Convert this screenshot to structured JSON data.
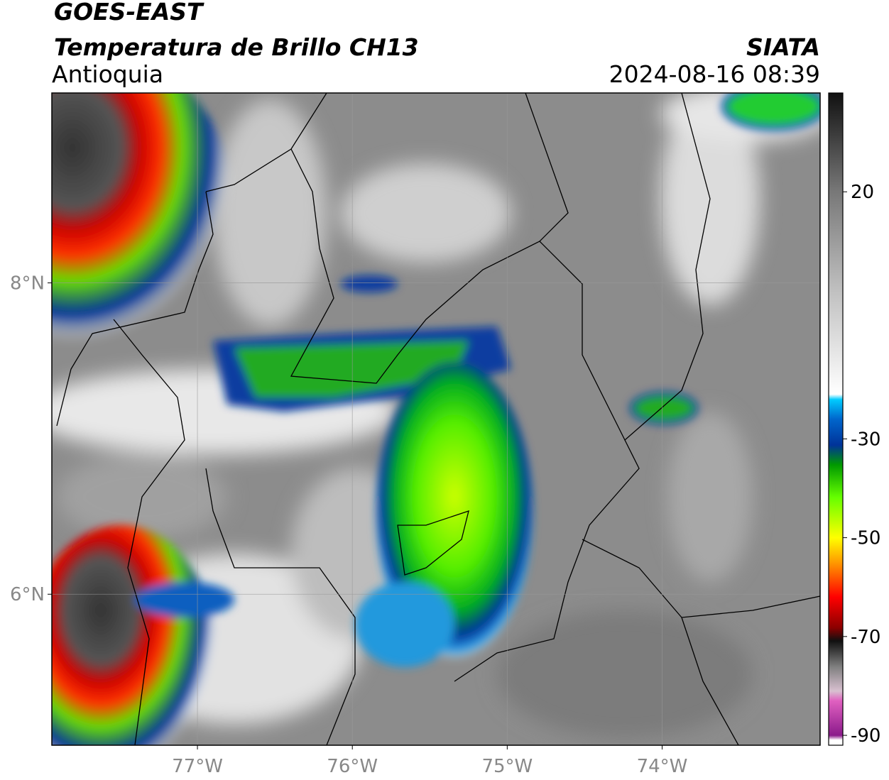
{
  "header": {
    "title": "GOES-EAST",
    "subtitle": "Temperatura de Brillo CH13",
    "region": "Antioquia",
    "source": "SIATA",
    "datetime": "2024-08-16 08:39"
  },
  "map": {
    "xlim": [
      -77.94,
      -72.98
    ],
    "ylim": [
      5.03,
      9.22
    ],
    "xticks": [
      {
        "value": -77,
        "label": "77°W"
      },
      {
        "value": -76,
        "label": "76°W"
      },
      {
        "value": -75,
        "label": "75°W"
      },
      {
        "value": -74,
        "label": "74°W"
      }
    ],
    "yticks": [
      {
        "value": 8,
        "label": "8°N"
      },
      {
        "value": 6,
        "label": "6°N"
      }
    ],
    "grid": true
  },
  "colorbar": {
    "clim": [
      -92,
      40
    ],
    "ticks": [
      20,
      -30,
      -50,
      -70,
      -90
    ]
  }
}
